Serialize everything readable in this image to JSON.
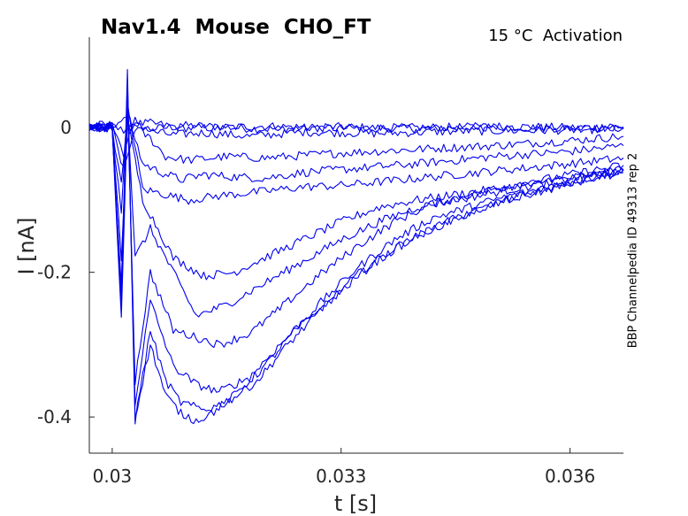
{
  "title": "Nav1.4  Mouse  CHO_FT",
  "condition": "15 °C  Activation",
  "sidenote": "BBP Channelpedia ID 49313 rep 2",
  "chart_data": {
    "type": "line",
    "title": "Nav1.4  Mouse  CHO_FT",
    "xlabel": "t [s]",
    "ylabel": "I [nA]",
    "xlim": [
      0.0297,
      0.0367
    ],
    "ylim": [
      -0.45,
      0.125
    ],
    "xticks": [
      0.03,
      0.033,
      0.036
    ],
    "xtick_labels": [
      "0.03",
      "0.033",
      "0.036"
    ],
    "yticks": [
      0,
      -0.2,
      -0.4
    ],
    "ytick_labels": [
      "0",
      "-0.2",
      "-0.4"
    ],
    "line_color": "#0000ee",
    "grid": false,
    "legend": "none",
    "series": [
      {
        "x": [
          0.0297,
          0.03,
          0.03015,
          0.0303,
          0.0305,
          0.031,
          0.032,
          0.033,
          0.034,
          0.035,
          0.036,
          0.0367
        ],
        "y": [
          0.0,
          0.002,
          -0.004,
          0.003,
          -0.002,
          0.003,
          -0.002,
          0.001,
          -0.002,
          0.002,
          0.0,
          0.001
        ]
      },
      {
        "x": [
          0.0297,
          0.03,
          0.03012,
          0.0303,
          0.0305,
          0.031,
          0.032,
          0.033,
          0.034,
          0.035,
          0.036,
          0.0367
        ],
        "y": [
          0.003,
          0.004,
          0.01,
          0.005,
          0.006,
          -0.001,
          0.002,
          -0.001,
          0.0,
          0.001,
          -0.001,
          0.0
        ]
      },
      {
        "x": [
          0.0297,
          0.03,
          0.03015,
          0.0303,
          0.0305,
          0.0308,
          0.0312,
          0.0318,
          0.0325,
          0.0335,
          0.0345,
          0.0355,
          0.0367
        ],
        "y": [
          0.0,
          0.003,
          -0.035,
          0.01,
          -0.005,
          -0.01,
          -0.007,
          -0.012,
          -0.006,
          -0.008,
          -0.005,
          -0.004,
          -0.002
        ]
      },
      {
        "x": [
          0.0297,
          0.03,
          0.03015,
          0.0303,
          0.0305,
          0.0307,
          0.031,
          0.0315,
          0.032,
          0.033,
          0.034,
          0.035,
          0.036,
          0.0367
        ],
        "y": [
          0.0,
          0.002,
          -0.06,
          0.0,
          -0.015,
          -0.04,
          -0.045,
          -0.04,
          -0.042,
          -0.035,
          -0.03,
          -0.025,
          -0.018,
          -0.012
        ]
      },
      {
        "x": [
          0.0297,
          0.03,
          0.03012,
          0.0302,
          0.0304,
          0.0306,
          0.0309,
          0.0312,
          0.0316,
          0.032,
          0.0325,
          0.033,
          0.034,
          0.035,
          0.036,
          0.0367
        ],
        "y": [
          0.0,
          0.0,
          -0.08,
          0.02,
          -0.05,
          -0.06,
          -0.072,
          -0.065,
          -0.068,
          -0.07,
          -0.062,
          -0.058,
          -0.05,
          -0.04,
          -0.033,
          -0.025
        ]
      },
      {
        "x": [
          0.0297,
          0.03,
          0.03012,
          0.0302,
          0.0304,
          0.0306,
          0.031,
          0.0315,
          0.032,
          0.0325,
          0.033,
          0.034,
          0.035,
          0.036,
          0.0367
        ],
        "y": [
          0.0,
          0.0,
          -0.12,
          0.03,
          -0.085,
          -0.09,
          -0.1,
          -0.093,
          -0.088,
          -0.082,
          -0.08,
          -0.07,
          -0.06,
          -0.05,
          -0.042
        ]
      },
      {
        "x": [
          0.0297,
          0.03,
          0.03012,
          0.0302,
          0.0304,
          0.0306,
          0.0308,
          0.0312,
          0.0316,
          0.032,
          0.0325,
          0.033,
          0.0335,
          0.034,
          0.035,
          0.036,
          0.0367
        ],
        "y": [
          0.0,
          0.0,
          -0.18,
          0.01,
          -0.1,
          -0.14,
          -0.18,
          -0.205,
          -0.2,
          -0.18,
          -0.155,
          -0.13,
          -0.11,
          -0.1,
          -0.085,
          -0.07,
          -0.058
        ]
      },
      {
        "x": [
          0.0297,
          0.03,
          0.03012,
          0.0302,
          0.0303,
          0.0305,
          0.0308,
          0.0311,
          0.0315,
          0.032,
          0.0325,
          0.033,
          0.0335,
          0.034,
          0.0345,
          0.035,
          0.036,
          0.0367
        ],
        "y": [
          0.0,
          0.0,
          -0.26,
          0.03,
          -0.18,
          -0.14,
          -0.2,
          -0.26,
          -0.245,
          -0.215,
          -0.185,
          -0.155,
          -0.13,
          -0.11,
          -0.1,
          -0.09,
          -0.07,
          -0.058
        ]
      },
      {
        "x": [
          0.0297,
          0.03,
          0.03012,
          0.0302,
          0.0303,
          0.0305,
          0.0308,
          0.0311,
          0.0314,
          0.0318,
          0.0322,
          0.0327,
          0.0332,
          0.0337,
          0.0342,
          0.035,
          0.036,
          0.0367
        ],
        "y": [
          0.0,
          0.0,
          -0.24,
          0.04,
          -0.35,
          -0.2,
          -0.28,
          -0.29,
          -0.3,
          -0.285,
          -0.25,
          -0.205,
          -0.165,
          -0.13,
          -0.105,
          -0.085,
          -0.065,
          -0.052
        ]
      },
      {
        "x": [
          0.0297,
          0.03,
          0.03012,
          0.0302,
          0.0303,
          0.0305,
          0.0308,
          0.0311,
          0.0314,
          0.0318,
          0.0322,
          0.0327,
          0.0332,
          0.0337,
          0.0342,
          0.035,
          0.036,
          0.0367
        ],
        "y": [
          0.0,
          0.0,
          -0.22,
          0.06,
          -0.38,
          -0.24,
          -0.33,
          -0.355,
          -0.365,
          -0.345,
          -0.3,
          -0.245,
          -0.195,
          -0.155,
          -0.125,
          -0.1,
          -0.075,
          -0.06
        ]
      },
      {
        "x": [
          0.0297,
          0.03,
          0.03012,
          0.0302,
          0.0303,
          0.0305,
          0.0307,
          0.0309,
          0.0312,
          0.0315,
          0.0319,
          0.0323,
          0.0328,
          0.0333,
          0.0338,
          0.0344,
          0.035,
          0.036,
          0.0367
        ],
        "y": [
          0.0,
          0.0,
          -0.25,
          0.07,
          -0.405,
          -0.28,
          -0.35,
          -0.38,
          -0.39,
          -0.38,
          -0.35,
          -0.3,
          -0.245,
          -0.195,
          -0.16,
          -0.13,
          -0.105,
          -0.075,
          -0.058
        ]
      },
      {
        "x": [
          0.0297,
          0.03,
          0.03012,
          0.0302,
          0.0303,
          0.0305,
          0.0307,
          0.0309,
          0.0311,
          0.0313,
          0.0316,
          0.032,
          0.0324,
          0.0329,
          0.0334,
          0.0339,
          0.0345,
          0.0352,
          0.036,
          0.0367
        ],
        "y": [
          0.0,
          0.0,
          -0.23,
          0.08,
          -0.4,
          -0.3,
          -0.37,
          -0.395,
          -0.405,
          -0.395,
          -0.37,
          -0.33,
          -0.28,
          -0.235,
          -0.19,
          -0.155,
          -0.125,
          -0.1,
          -0.078,
          -0.062
        ]
      }
    ]
  }
}
